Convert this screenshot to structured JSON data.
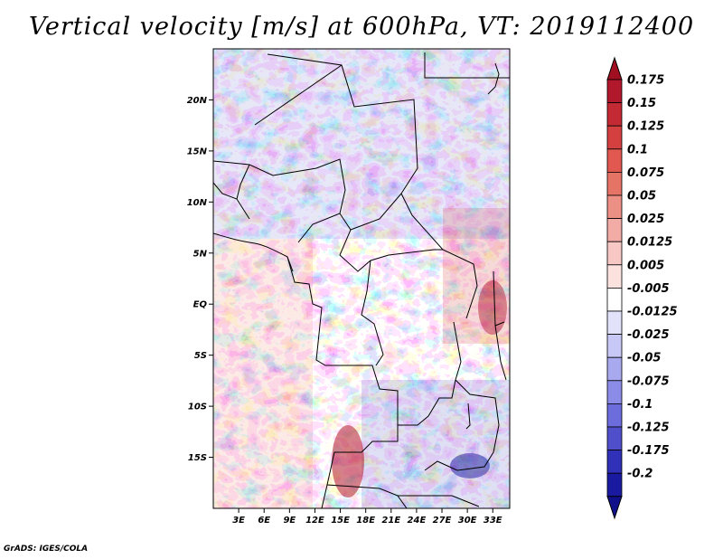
{
  "title": "Vertical velocity [m/s] at 600hPa, VT: 2019112400",
  "credit": "GrADS: IGES/COLA",
  "map": {
    "lon_range": [
      0,
      35
    ],
    "lat_range": [
      -20,
      25
    ],
    "lat_labels": [
      {
        "text": "20N",
        "value": 20
      },
      {
        "text": "15N",
        "value": 15
      },
      {
        "text": "10N",
        "value": 10
      },
      {
        "text": "5N",
        "value": 5
      },
      {
        "text": "EQ",
        "value": 0
      },
      {
        "text": "5S",
        "value": -5
      },
      {
        "text": "10S",
        "value": -10
      },
      {
        "text": "15S",
        "value": -15
      }
    ],
    "lon_labels": [
      {
        "text": "3E",
        "value": 3
      },
      {
        "text": "6E",
        "value": 6
      },
      {
        "text": "9E",
        "value": 9
      },
      {
        "text": "12E",
        "value": 12
      },
      {
        "text": "15E",
        "value": 15
      },
      {
        "text": "18E",
        "value": 18
      },
      {
        "text": "21E",
        "value": 21
      },
      {
        "text": "24E",
        "value": 24
      },
      {
        "text": "27E",
        "value": 27
      },
      {
        "text": "30E",
        "value": 30
      },
      {
        "text": "33E",
        "value": 33
      }
    ]
  },
  "colorbar": {
    "levels": [
      {
        "label": "0.175",
        "color": "#b2182b"
      },
      {
        "label": "0.15",
        "color": "#c42a34"
      },
      {
        "label": "0.125",
        "color": "#d43f3f"
      },
      {
        "label": "0.1",
        "color": "#e0584f"
      },
      {
        "label": "0.075",
        "color": "#e57366"
      },
      {
        "label": "0.05",
        "color": "#ec8f85"
      },
      {
        "label": "0.025",
        "color": "#f3aca5"
      },
      {
        "label": "0.0125",
        "color": "#f8c9c4"
      },
      {
        "label": "0.005",
        "color": "#fbe2df"
      },
      {
        "label": "-0.005",
        "color": "#ffffff"
      },
      {
        "label": "-0.0125",
        "color": "#e2e2fb"
      },
      {
        "label": "-0.025",
        "color": "#c8c8f6"
      },
      {
        "label": "-0.05",
        "color": "#a9a9f0"
      },
      {
        "label": "-0.075",
        "color": "#8b8be8"
      },
      {
        "label": "-0.1",
        "color": "#6c6cdc"
      },
      {
        "label": "-0.125",
        "color": "#4f4fcc"
      },
      {
        "label": "-0.175",
        "color": "#3030b8"
      },
      {
        "label": "-0.2",
        "color": "#1a1aa0"
      }
    ],
    "top_color": "#a01020",
    "bottom_color": "#10108a"
  }
}
